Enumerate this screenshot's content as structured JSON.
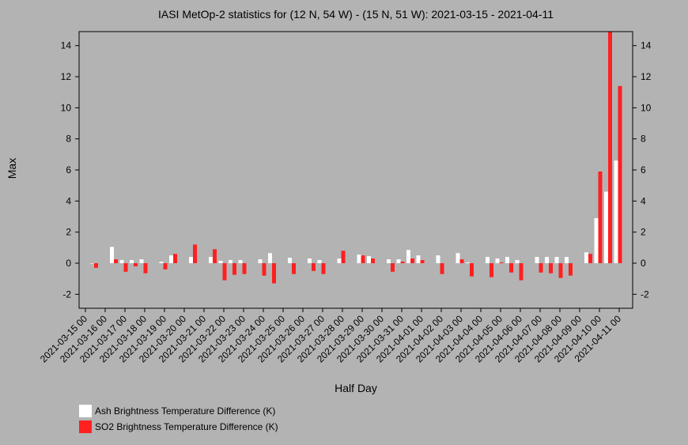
{
  "chart_data": {
    "type": "bar",
    "title": "IASI MetOp-2 statistics for (12 N, 54 W) - (15 N, 51 W): 2021-03-15 - 2021-04-11",
    "x_label": "Half Day",
    "y_label": "Max",
    "categories": [
      "2021-03-15 00",
      null,
      "2021-03-16 00",
      null,
      "2021-03-17 00",
      null,
      "2021-03-18 00",
      null,
      "2021-03-19 00",
      null,
      "2021-03-20 00",
      null,
      "2021-03-21 00",
      null,
      "2021-03-22 00",
      null,
      "2021-03-23 00",
      null,
      "2021-03-24 00",
      null,
      "2021-03-25 00",
      null,
      "2021-03-26 00",
      null,
      "2021-03-27 00",
      null,
      "2021-03-28 00",
      null,
      "2021-03-29 00",
      null,
      "2021-03-30 00",
      null,
      "2021-03-31 00",
      null,
      "2021-04-01 00",
      null,
      "2021-04-02 00",
      null,
      "2021-04-03 00",
      null,
      "2021-04-04 00",
      null,
      "2021-04-05 00",
      null,
      "2021-04-06 00",
      null,
      "2021-04-07 00",
      null,
      "2021-04-08 00",
      null,
      "2021-04-09 00",
      null,
      "2021-04-10 00",
      null,
      "2021-04-11 00"
    ],
    "series": [
      {
        "name": "Ash Brightness Temperature Difference (K)",
        "color": "#ffffff",
        "values": [
          0.0,
          null,
          1.05,
          0.2,
          0.2,
          0.25,
          null,
          0.1,
          0.5,
          null,
          0.4,
          null,
          0.4,
          0.15,
          0.2,
          0.2,
          null,
          0.25,
          0.65,
          null,
          0.35,
          null,
          0.3,
          0.2,
          null,
          0.3,
          null,
          0.55,
          0.45,
          null,
          0.25,
          0.25,
          0.85,
          0.5,
          null,
          0.5,
          null,
          0.65,
          0.05,
          null,
          0.4,
          0.3,
          0.4,
          0.2,
          null,
          0.4,
          0.4,
          0.4,
          0.4,
          null,
          0.7,
          2.9,
          4.6,
          6.6,
          null
        ]
      },
      {
        "name": "SO2 Brightness Temperature Difference (K)",
        "color": "#ff2020",
        "values": [
          -0.3,
          null,
          0.25,
          -0.55,
          -0.2,
          -0.65,
          null,
          -0.4,
          0.6,
          null,
          1.2,
          null,
          0.9,
          -1.1,
          -0.75,
          -0.7,
          null,
          -0.8,
          -1.3,
          null,
          -0.7,
          null,
          -0.5,
          -0.7,
          null,
          0.8,
          null,
          0.5,
          0.3,
          null,
          -0.55,
          0.1,
          0.3,
          0.2,
          null,
          -0.7,
          null,
          0.25,
          -0.85,
          null,
          -0.9,
          0.05,
          -0.6,
          -1.1,
          null,
          -0.6,
          -0.65,
          -0.95,
          -0.8,
          null,
          0.6,
          5.9,
          15,
          11.4,
          null
        ]
      }
    ],
    "ylim": [
      -2.9,
      14.9
    ],
    "yticks": [
      -2,
      0,
      2,
      4,
      6,
      8,
      10,
      12,
      14
    ]
  }
}
